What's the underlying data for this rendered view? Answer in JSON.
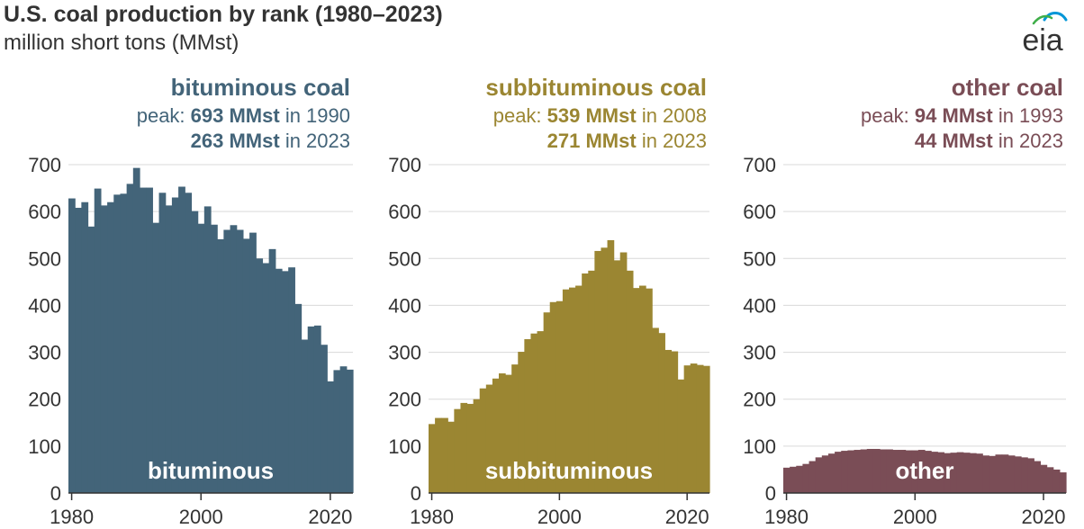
{
  "title": "U.S. coal production by rank (1980–2023)",
  "subtitle": "million short tons (MMst)",
  "logo_text": "eia",
  "colors": {
    "bituminous": "#436479",
    "subbituminous": "#9b8632",
    "other": "#7a4d56",
    "grid": "#d9d9d9",
    "axis": "#333333",
    "tick_text": "#333333"
  },
  "chart_data": [
    {
      "type": "bar",
      "heading": "bituminous coal",
      "peak_prefix": "peak: ",
      "peak_value": "693 MMst",
      "peak_suffix": " in 1990",
      "latest_value": "263 MMst",
      "latest_suffix": " in 2023",
      "inner_label": "bituminous",
      "color": "#436479",
      "xlim": [
        1980,
        2023
      ],
      "ylim": [
        0,
        700
      ],
      "x_ticks": [
        1980,
        2000,
        2020
      ],
      "y_ticks": [
        0,
        100,
        200,
        300,
        400,
        500,
        600,
        700
      ],
      "x": [
        1980,
        1981,
        1982,
        1983,
        1984,
        1985,
        1986,
        1987,
        1988,
        1989,
        1990,
        1991,
        1992,
        1993,
        1994,
        1995,
        1996,
        1997,
        1998,
        1999,
        2000,
        2001,
        2002,
        2003,
        2004,
        2005,
        2006,
        2007,
        2008,
        2009,
        2010,
        2011,
        2012,
        2013,
        2014,
        2015,
        2016,
        2017,
        2018,
        2019,
        2020,
        2021,
        2022,
        2023
      ],
      "values": [
        628,
        608,
        620,
        568,
        649,
        613,
        620,
        636,
        638,
        659,
        693,
        651,
        651,
        576,
        640,
        613,
        630,
        653,
        640,
        601,
        574,
        611,
        572,
        541,
        561,
        571,
        561,
        542,
        555,
        500,
        490,
        520,
        478,
        473,
        481,
        403,
        327,
        355,
        357,
        316,
        238,
        262,
        270,
        263
      ]
    },
    {
      "type": "bar",
      "heading": "subbituminous coal",
      "peak_prefix": "peak: ",
      "peak_value": "539 MMst",
      "peak_suffix": " in 2008",
      "latest_value": "271 MMst",
      "latest_suffix": " in 2023",
      "inner_label": "subbituminous",
      "color": "#9b8632",
      "xlim": [
        1980,
        2023
      ],
      "ylim": [
        0,
        700
      ],
      "x_ticks": [
        1980,
        2000,
        2020
      ],
      "y_ticks": [
        0,
        100,
        200,
        300,
        400,
        500,
        600,
        700
      ],
      "x": [
        1980,
        1981,
        1982,
        1983,
        1984,
        1985,
        1986,
        1987,
        1988,
        1989,
        1990,
        1991,
        1992,
        1993,
        1994,
        1995,
        1996,
        1997,
        1998,
        1999,
        2000,
        2001,
        2002,
        2003,
        2004,
        2005,
        2006,
        2007,
        2008,
        2009,
        2010,
        2011,
        2012,
        2013,
        2014,
        2015,
        2016,
        2017,
        2018,
        2019,
        2020,
        2021,
        2022,
        2023
      ],
      "values": [
        147,
        160,
        160,
        152,
        179,
        192,
        190,
        200,
        223,
        231,
        244,
        255,
        252,
        274,
        301,
        328,
        340,
        345,
        385,
        407,
        409,
        434,
        438,
        442,
        468,
        474,
        516,
        523,
        539,
        496,
        513,
        474,
        437,
        442,
        436,
        352,
        341,
        305,
        302,
        242,
        272,
        276,
        273,
        271
      ]
    },
    {
      "type": "bar",
      "heading": "other coal",
      "peak_prefix": "peak: ",
      "peak_value": "94 MMst",
      "peak_suffix": " in 1993",
      "latest_value": "44 MMst",
      "latest_suffix": " in 2023",
      "inner_label": "other",
      "color": "#7a4d56",
      "xlim": [
        1980,
        2023
      ],
      "ylim": [
        0,
        700
      ],
      "x_ticks": [
        1980,
        2000,
        2020
      ],
      "y_ticks": [
        0,
        100,
        200,
        300,
        400,
        500,
        600,
        700
      ],
      "x": [
        1980,
        1981,
        1982,
        1983,
        1984,
        1985,
        1986,
        1987,
        1988,
        1989,
        1990,
        1991,
        1992,
        1993,
        1994,
        1995,
        1996,
        1997,
        1998,
        1999,
        2000,
        2001,
        2002,
        2003,
        2004,
        2005,
        2006,
        2007,
        2008,
        2009,
        2010,
        2011,
        2012,
        2013,
        2014,
        2015,
        2016,
        2017,
        2018,
        2019,
        2020,
        2021,
        2022,
        2023
      ],
      "values": [
        54,
        56,
        58,
        62,
        68,
        76,
        80,
        84,
        88,
        90,
        91,
        92,
        93,
        94,
        94,
        93,
        93,
        92,
        92,
        91,
        91,
        92,
        90,
        88,
        87,
        85,
        86,
        87,
        86,
        85,
        84,
        80,
        79,
        82,
        82,
        80,
        78,
        76,
        74,
        68,
        60,
        55,
        50,
        44
      ]
    }
  ]
}
